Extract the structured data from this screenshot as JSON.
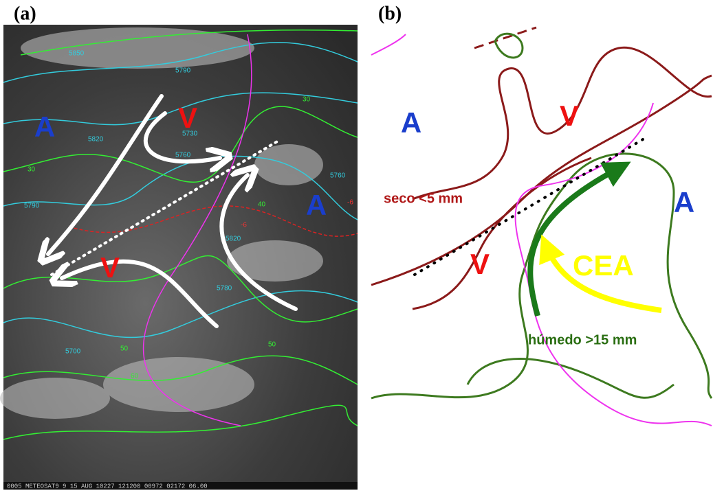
{
  "panel_a": {
    "label": "(a)",
    "centers": [
      "A",
      "V",
      "V",
      "A"
    ],
    "contour_labels": [
      "5850",
      "5790",
      "5820",
      "5760",
      "5730",
      "5790",
      "5820",
      "5760",
      "5700",
      "5780",
      "30",
      "30",
      "40",
      "50",
      "50",
      "60",
      "-6",
      "-6"
    ],
    "footer": "0005 METEOSAT9  9 15 AUG 10227 121200 00972 02172 06.00"
  },
  "panel_b": {
    "label": "(b)",
    "centers": [
      "A",
      "V",
      "A",
      "V"
    ],
    "dry": "seco <5 mm",
    "flow": "CEA",
    "moist": "húmedo >15 mm"
  }
}
